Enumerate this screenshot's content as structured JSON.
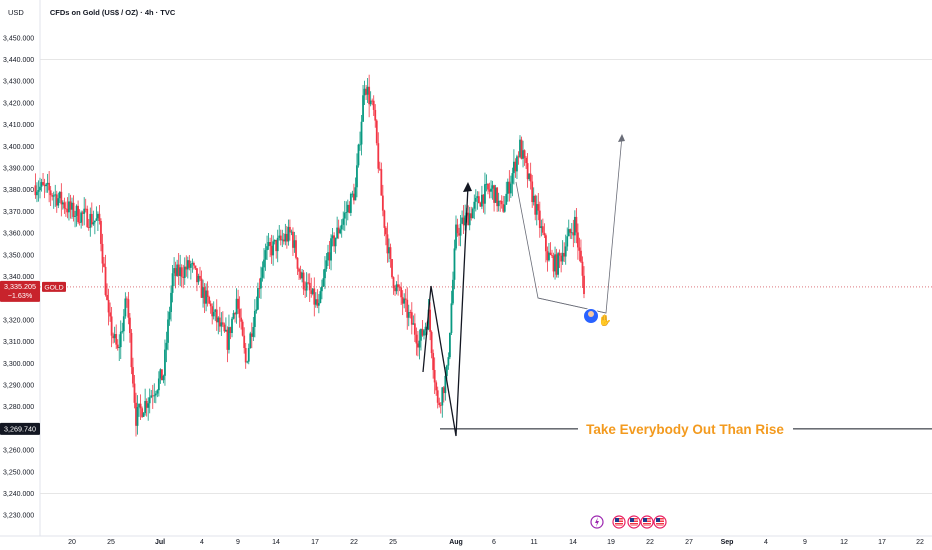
{
  "header": {
    "currency": "USD",
    "title": "CFDs on Gold (US$ / OZ) · 4h · TVC"
  },
  "price_tag": {
    "price": "3,335.205",
    "change": "−1.63%",
    "symbol": "GOLD",
    "color": "#c8232c"
  },
  "low_tag": {
    "price": "3,269.740",
    "color": "#131722"
  },
  "annotation": {
    "text": "Take Everybody Out Than Rise",
    "color": "#f39a1e"
  },
  "event_icons": [
    "lightning-icon",
    "us-flag-icon",
    "us-flag-icon",
    "us-flag-icon",
    "us-flag-icon"
  ],
  "chart_data": {
    "type": "candlestick",
    "title": "CFDs on Gold (US$ / OZ) · 4h · TVC",
    "ylim": [
      3225,
      3455
    ],
    "y_ticks": [
      "3,450.000",
      "3,440.000",
      "3,430.000",
      "3,420.000",
      "3,410.000",
      "3,400.000",
      "3,390.000",
      "3,380.000",
      "3,370.000",
      "3,360.000",
      "3,350.000",
      "3,340.000",
      "3,330.000",
      "3,320.000",
      "3,310.000",
      "3,300.000",
      "3,290.000",
      "3,280.000",
      "3,270.000",
      "3,260.000",
      "3,250.000",
      "3,240.000",
      "3,230.000"
    ],
    "x_ticks": [
      {
        "label": "20",
        "bold": false
      },
      {
        "label": "25",
        "bold": false
      },
      {
        "label": "Jul",
        "bold": true
      },
      {
        "label": "4",
        "bold": false
      },
      {
        "label": "9",
        "bold": false
      },
      {
        "label": "14",
        "bold": false
      },
      {
        "label": "17",
        "bold": false
      },
      {
        "label": "22",
        "bold": false
      },
      {
        "label": "25",
        "bold": false
      },
      {
        "label": "Aug",
        "bold": true
      },
      {
        "label": "6",
        "bold": false
      },
      {
        "label": "11",
        "bold": false
      },
      {
        "label": "14",
        "bold": false
      },
      {
        "label": "19",
        "bold": false
      },
      {
        "label": "22",
        "bold": false
      },
      {
        "label": "27",
        "bold": false
      },
      {
        "label": "Sep",
        "bold": true
      },
      {
        "label": "4",
        "bold": false
      },
      {
        "label": "9",
        "bold": false
      },
      {
        "label": "12",
        "bold": false
      },
      {
        "label": "17",
        "bold": false
      },
      {
        "label": "22",
        "bold": false
      }
    ],
    "current_price": 3335.205,
    "current_change_pct": -1.63,
    "support_level": 3269.74,
    "up_color": "#089981",
    "down_color": "#f23645",
    "anchors": [
      {
        "x": "Jun 16",
        "close": 3382
      },
      {
        "x": "Jun 18",
        "close": 3378
      },
      {
        "x": "Jun 20",
        "close": 3370
      },
      {
        "x": "Jun 23",
        "close": 3365
      },
      {
        "x": "Jun 24",
        "close": 3320
      },
      {
        "x": "Jun 25",
        "close": 3305
      },
      {
        "x": "Jun 26",
        "close": 3330
      },
      {
        "x": "Jun 27",
        "close": 3275
      },
      {
        "x": "Jun 30",
        "close": 3295
      },
      {
        "x": "Jul 1",
        "close": 3340
      },
      {
        "x": "Jul 3",
        "close": 3345
      },
      {
        "x": "Jul 4",
        "close": 3335
      },
      {
        "x": "Jul 7",
        "close": 3310
      },
      {
        "x": "Jul 8",
        "close": 3330
      },
      {
        "x": "Jul 9",
        "close": 3300
      },
      {
        "x": "Jul 11",
        "close": 3350
      },
      {
        "x": "Jul 14",
        "close": 3360
      },
      {
        "x": "Jul 15",
        "close": 3340
      },
      {
        "x": "Jul 17",
        "close": 3325
      },
      {
        "x": "Jul 18",
        "close": 3350
      },
      {
        "x": "Jul 21",
        "close": 3380
      },
      {
        "x": "Jul 22",
        "close": 3430
      },
      {
        "x": "Jul 23",
        "close": 3415
      },
      {
        "x": "Jul 24",
        "close": 3370
      },
      {
        "x": "Jul 25",
        "close": 3340
      },
      {
        "x": "Jul 28",
        "close": 3310
      },
      {
        "x": "Jul 29",
        "close": 3322
      },
      {
        "x": "Jul 30",
        "close": 3280
      },
      {
        "x": "Jul 31",
        "close": 3295
      },
      {
        "x": "Aug 1",
        "close": 3360
      },
      {
        "x": "Aug 4",
        "close": 3378
      },
      {
        "x": "Aug 5",
        "close": 3380
      },
      {
        "x": "Aug 6",
        "close": 3370
      },
      {
        "x": "Aug 8",
        "close": 3400
      },
      {
        "x": "Aug 11",
        "close": 3350
      },
      {
        "x": "Aug 12",
        "close": 3345
      },
      {
        "x": "Aug 13",
        "close": 3355
      },
      {
        "x": "Aug 14",
        "close": 3365
      },
      {
        "x": "Aug 15",
        "close": 3335
      }
    ]
  }
}
